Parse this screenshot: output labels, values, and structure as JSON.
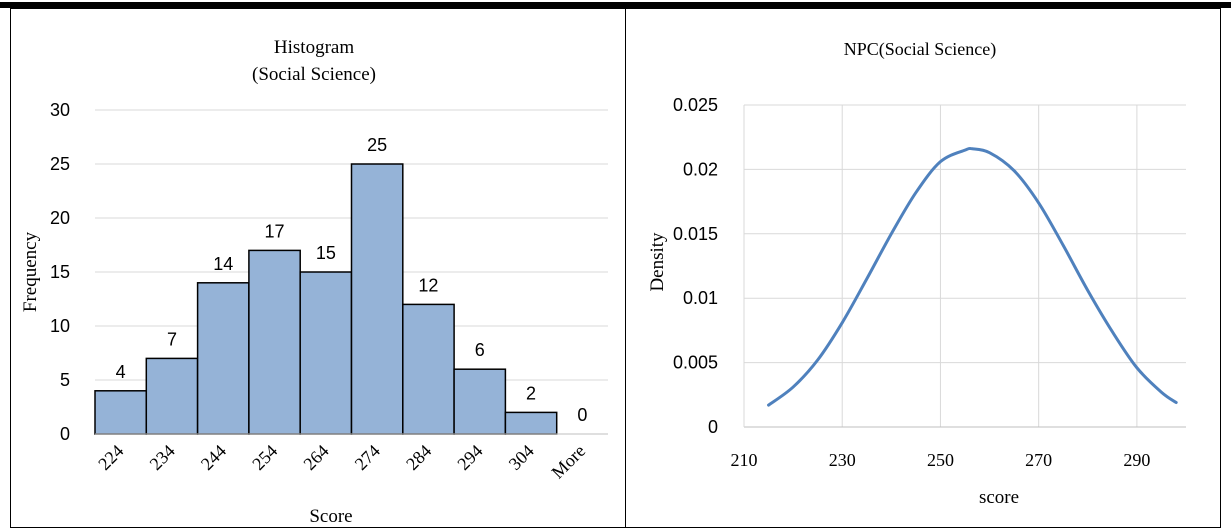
{
  "chart_data": [
    {
      "type": "bar",
      "title": "Histogram",
      "subtitle": "(Social Science)",
      "xlabel": "Score",
      "ylabel": "Frequency",
      "categories": [
        "224",
        "234",
        "244",
        "254",
        "264",
        "274",
        "284",
        "294",
        "304",
        "More"
      ],
      "values": [
        4,
        7,
        14,
        17,
        15,
        25,
        12,
        6,
        2,
        0
      ],
      "ylim": [
        0,
        30
      ],
      "yticks": [
        0,
        5,
        10,
        15,
        20,
        25,
        30
      ],
      "grid": true,
      "bar_color": "#95B3D7",
      "data_labels": true
    },
    {
      "type": "line",
      "title": "NPC(Social Science)",
      "xlabel": "score",
      "ylabel": "Density",
      "x": [
        215,
        220,
        225,
        230,
        235,
        240,
        245,
        250,
        255,
        256.5,
        260,
        265,
        270,
        275,
        280,
        285,
        290,
        295,
        298
      ],
      "y": [
        0.0017,
        0.0031,
        0.0052,
        0.0081,
        0.0115,
        0.015,
        0.0182,
        0.0206,
        0.0215,
        0.0216,
        0.0213,
        0.0199,
        0.0174,
        0.0141,
        0.0106,
        0.0074,
        0.0046,
        0.0027,
        0.0019
      ],
      "xlim": [
        210,
        300
      ],
      "xticks": [
        210,
        230,
        250,
        270,
        290
      ],
      "ylim": [
        0,
        0.025
      ],
      "yticks": [
        "0",
        "0.005",
        "0.01",
        "0.015",
        "0.02",
        "0.025"
      ],
      "grid": true,
      "line_color": "#4F81BD"
    }
  ]
}
